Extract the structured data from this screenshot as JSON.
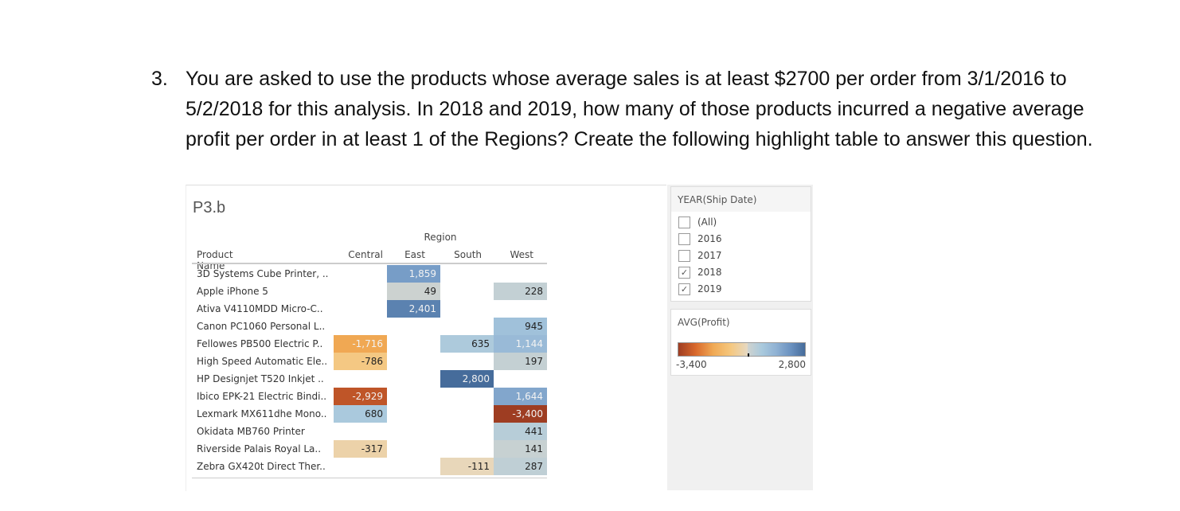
{
  "question": {
    "number": "3.",
    "text": "You are asked to use the products whose average sales is at least $2700 per order from 3/1/2016 to 5/2/2018 for this analysis. In 2018 and 2019, how many of those products incurred a negative average profit per order in at least 1 of the Regions? Create the following highlight table to answer this question."
  },
  "sheet_title": "P3.b",
  "table": {
    "column_group": "Region",
    "row_header": "Product Name",
    "columns": [
      "Central",
      "East",
      "South",
      "West"
    ],
    "rows": [
      {
        "name": "3D Systems Cube Printer, ..",
        "values": [
          null,
          1859,
          null,
          null
        ]
      },
      {
        "name": "Apple iPhone 5",
        "values": [
          null,
          49,
          null,
          228
        ]
      },
      {
        "name": "Ativa V4110MDD Micro-C..",
        "values": [
          null,
          2401,
          null,
          null
        ]
      },
      {
        "name": "Canon PC1060 Personal L..",
        "values": [
          null,
          null,
          null,
          945
        ]
      },
      {
        "name": "Fellowes PB500 Electric P..",
        "values": [
          -1716,
          null,
          635,
          1144
        ]
      },
      {
        "name": "High Speed Automatic Ele..",
        "values": [
          -786,
          null,
          null,
          197
        ]
      },
      {
        "name": "HP Designjet T520 Inkjet ..",
        "values": [
          null,
          null,
          2800,
          null
        ]
      },
      {
        "name": "Ibico EPK-21 Electric Bindi..",
        "values": [
          -2929,
          null,
          null,
          1644
        ]
      },
      {
        "name": "Lexmark MX611dhe Mono..",
        "values": [
          680,
          null,
          null,
          -3400
        ]
      },
      {
        "name": "Okidata MB760 Printer",
        "values": [
          null,
          null,
          null,
          441
        ]
      },
      {
        "name": "Riverside Palais Royal La..",
        "values": [
          -317,
          null,
          null,
          141
        ]
      },
      {
        "name": "Zebra GX420t Direct Ther..",
        "values": [
          null,
          null,
          -111,
          287
        ]
      }
    ]
  },
  "filter": {
    "title": "YEAR(Ship Date)",
    "options": [
      {
        "label": "(All)",
        "checked": false
      },
      {
        "label": "2016",
        "checked": false
      },
      {
        "label": "2017",
        "checked": false
      },
      {
        "label": "2018",
        "checked": true
      },
      {
        "label": "2019",
        "checked": true
      }
    ]
  },
  "legend": {
    "title": "AVG(Profit)",
    "min_label": "-3,400",
    "max_label": "2,800",
    "min": -3400,
    "max": 2800,
    "negative_colors": [
      "#9e3d22",
      "#d9692c",
      "#f0a954",
      "#f5c77e",
      "#e6d9c3"
    ],
    "positive_colors": [
      "#cfd3cf",
      "#a9c9dd",
      "#8fb1d3",
      "#6b92c0",
      "#466c9b"
    ]
  }
}
